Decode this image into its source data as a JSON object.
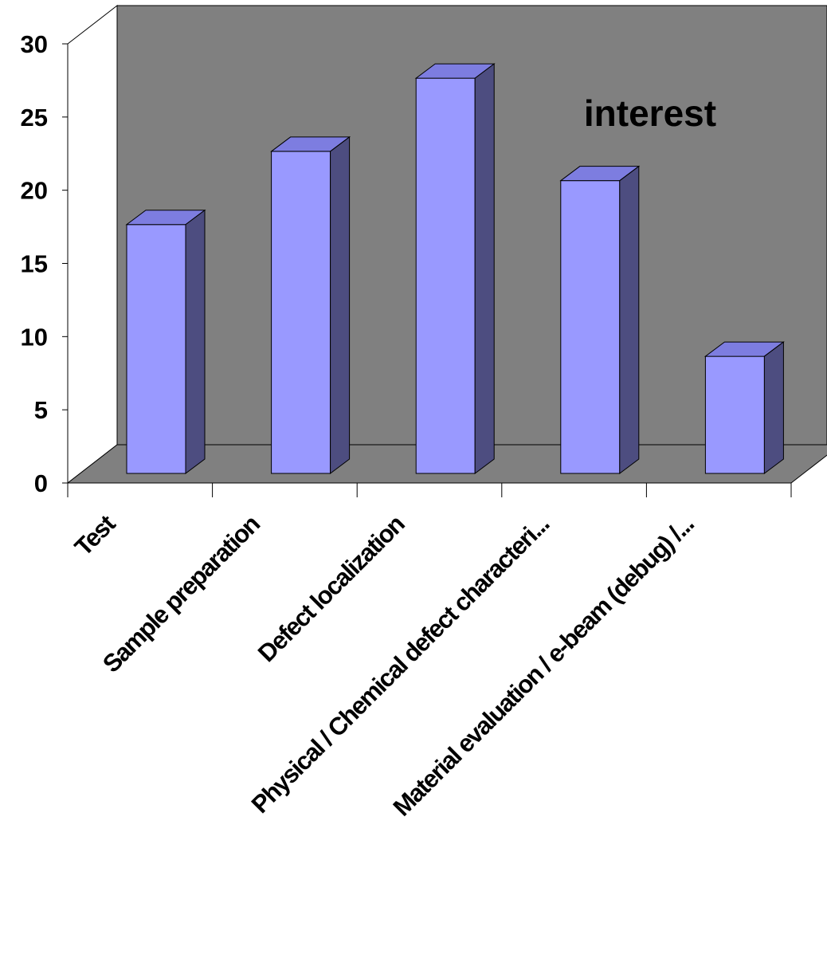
{
  "chart_data": {
    "type": "bar",
    "style": "3d-column",
    "categories": [
      "Test",
      "Sample preparation",
      "Defect localization",
      "Physical / Chemical defect characteri...",
      "Material evaluation / e-beam (debug) /..."
    ],
    "values": [
      17,
      22,
      27,
      20,
      8
    ],
    "ylim": [
      0,
      30
    ],
    "yticks": [
      0,
      5,
      10,
      15,
      20,
      25,
      30
    ],
    "title": "",
    "xlabel": "",
    "ylabel": "",
    "annotations": [
      "interest"
    ],
    "grid": false,
    "legend": "none",
    "colors": {
      "bar_front": "#9999ff",
      "bar_top": "#7d7de0",
      "bar_side": "#4d4d80",
      "back_wall": "#808080",
      "floor": "#808080",
      "side_wall": "#ffffff",
      "outline": "#000000"
    }
  }
}
